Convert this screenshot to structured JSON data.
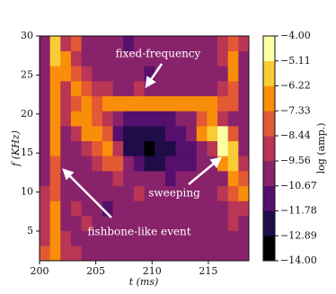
{
  "chart_data": {
    "type": "heatmap",
    "xlabel": "t (ms)",
    "ylabel": "f (KHz)",
    "colorbar_label": "log (amp.)",
    "xlim": [
      200,
      218.6
    ],
    "xticks": [
      200,
      205,
      210,
      215
    ],
    "ylim": [
      1.2,
      30
    ],
    "yticks": [
      5,
      10,
      15,
      20,
      25,
      30
    ],
    "clim": [
      -14,
      -4
    ],
    "cticks": [
      {
        "value": -4,
        "label": "−4.00"
      },
      {
        "value": -5.11,
        "label": "−5.11"
      },
      {
        "value": -6.22,
        "label": "−6.22"
      },
      {
        "value": -7.33,
        "label": "−7.33"
      },
      {
        "value": -8.44,
        "label": "−8.44"
      },
      {
        "value": -9.56,
        "label": "−9.56"
      },
      {
        "value": -10.67,
        "label": "−10.67"
      },
      {
        "value": -11.78,
        "label": "−11.78"
      },
      {
        "value": -12.89,
        "label": "−12.89"
      },
      {
        "value": -14,
        "label": "−14.00"
      }
    ],
    "colormap": [
      "#000004",
      "#1f0c48",
      "#550f6d",
      "#88226a",
      "#ba3655",
      "#e35933",
      "#f98e09",
      "#f9cb35",
      "#fcffa4"
    ],
    "annotations": [
      "fixed-frequency",
      "sweeping",
      "fishbone-like event"
    ],
    "z": [
      [
        -8,
        -6.5,
        -9,
        -9.5,
        -10,
        -10,
        -10.5,
        -10,
        -10,
        -10,
        -10,
        -10,
        -10,
        -10,
        -10.5,
        -10,
        -10,
        -10,
        -10,
        -10
      ],
      [
        -8.5,
        -7,
        -9.5,
        -10,
        -10,
        -10,
        -10,
        -10,
        -10.5,
        -10,
        -10,
        -10,
        -10,
        -10,
        -10,
        -10,
        -10.5,
        -10,
        -10,
        -10
      ],
      [
        -9,
        -7,
        -10,
        -10,
        -9.5,
        -10,
        -10,
        -10.5,
        -10,
        -10,
        -10,
        -10,
        -10,
        -10.5,
        -10,
        -10,
        -10,
        -10,
        -9.5,
        -10
      ],
      [
        -9,
        -7,
        -10,
        -9.5,
        -10,
        -10,
        -11,
        -10,
        -10,
        -10,
        -10,
        -10.5,
        -10,
        -10,
        -10,
        -10.5,
        -10,
        -10,
        -9,
        -9
      ],
      [
        -9.5,
        -7.5,
        -10,
        -10,
        -10,
        -10.5,
        -10,
        -10,
        -10,
        -9.5,
        -10,
        -10,
        -10,
        -10.5,
        -10,
        -10,
        -10,
        -9.5,
        -8,
        -7
      ],
      [
        -10,
        -7.5,
        -10,
        -10,
        -10.5,
        -10,
        -10,
        -9.5,
        -10,
        -10,
        -10.5,
        -10,
        -11,
        -10.5,
        -10,
        -10,
        -10,
        -10,
        -7,
        -8
      ],
      [
        -10,
        -7.5,
        -10,
        -10.5,
        -10,
        -9,
        -8,
        -8,
        -10,
        -11,
        -12,
        -12,
        -11.5,
        -11,
        -11,
        -10.5,
        -10,
        -7,
        -5.5,
        -9
      ],
      [
        -10.5,
        -7,
        -10,
        -10,
        -9,
        -7.5,
        -6.5,
        -9,
        -12,
        -12.5,
        -13,
        -12,
        -12.5,
        -11,
        -11,
        -10,
        -9,
        -5,
        -6,
        -10
      ],
      [
        -10,
        -7,
        -10,
        -9,
        -7,
        -6.5,
        -8,
        -11,
        -12,
        -12.5,
        -12,
        -12,
        -11.5,
        -11,
        -10,
        -7,
        -6,
        -5,
        -8,
        -10
      ],
      [
        -10,
        -6.5,
        -9.5,
        -7,
        -6.8,
        -8,
        -9,
        -10.5,
        -11,
        -11,
        -11.5,
        -11,
        -11,
        -10.5,
        -10,
        -8,
        -7,
        -9,
        -10,
        -10.5
      ],
      [
        -10,
        -6.5,
        -9,
        -7.5,
        -7,
        -7.5,
        -7,
        -6.5,
        -7,
        -6.8,
        -7,
        -6.5,
        -7,
        -7,
        -7,
        -6.5,
        -7,
        -7.5,
        -8,
        -10
      ],
      [
        -10.5,
        -6.5,
        -9,
        -7,
        -8,
        -9,
        -9.5,
        -10,
        -10,
        -9.5,
        -10,
        -10,
        -10,
        -10,
        -10,
        -10,
        -10,
        -9,
        -7.5,
        -10
      ],
      [
        -10,
        -6.5,
        -7,
        -8,
        -9,
        -10,
        -10,
        -10.5,
        -10,
        -10,
        -11,
        -10,
        -10.5,
        -10,
        -10,
        -10.5,
        -10,
        -10,
        -7,
        -10
      ],
      [
        -10,
        -6,
        -7,
        -9,
        -10,
        -10,
        -10.5,
        -10,
        -10,
        -10.5,
        -10,
        -10,
        -10.5,
        -10,
        -10,
        -10,
        -10,
        -9,
        -7,
        -10
      ],
      [
        -10,
        -6,
        -9,
        -8,
        -10,
        -10,
        -10,
        -10.5,
        -11,
        -10,
        -10,
        -10.5,
        -10,
        -10,
        -10.5,
        -10,
        -10,
        -9,
        -8,
        -9
      ]
    ]
  }
}
